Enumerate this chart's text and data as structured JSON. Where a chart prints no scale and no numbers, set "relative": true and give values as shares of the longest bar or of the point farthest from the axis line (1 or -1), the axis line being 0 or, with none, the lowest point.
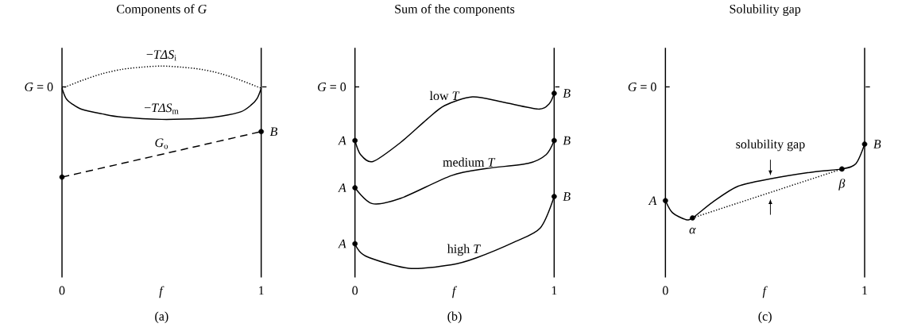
{
  "chart_data": [
    {
      "type": "line",
      "title": "Components of *G*",
      "xlabel": "*f*",
      "xlim": [
        0,
        1
      ],
      "xticks": [
        0,
        1
      ],
      "relative": true,
      "series": [
        {
          "name": "−*TΔS*$_{i}$",
          "color": "#000000",
          "line_style": "dotted",
          "x": [
            0,
            0.1,
            0.2,
            0.3,
            0.4,
            0.5,
            0.6,
            0.7,
            0.8,
            0.9,
            1
          ],
          "values": [
            0.8,
            0.87,
            0.93,
            0.97,
            0.99,
            1.0,
            0.99,
            0.97,
            0.93,
            0.87,
            0.8
          ]
        },
        {
          "name": "−*TΔS*$_{m}$",
          "color": "#000000",
          "line_style": "solid",
          "x": [
            0,
            0.02,
            0.05,
            0.1,
            0.2,
            0.3,
            0.5,
            0.7,
            0.8,
            0.9,
            0.95,
            0.98,
            1
          ],
          "values": [
            0.8,
            0.71,
            0.66,
            0.61,
            0.57,
            0.54,
            0.52,
            0.53,
            0.55,
            0.59,
            0.65,
            0.71,
            0.8
          ]
        },
        {
          "name": "*G*$_{o}$",
          "color": "#000000",
          "line_style": "dashed",
          "x": [
            0,
            1
          ],
          "values": [
            0,
            0.41
          ]
        },
        {
          "type": "scatter",
          "marker": "circle",
          "color": "#000000",
          "x": [
            0,
            1
          ],
          "values": [
            0,
            0.41
          ]
        }
      ],
      "annotations": [
        "*G* = 0",
        {
          "text": "*B*",
          "x": 1,
          "y": 0.41
        },
        "(a)"
      ]
    },
    {
      "type": "line",
      "title": "Sum of the components",
      "xlabel": "*f*",
      "xlim": [
        0,
        1
      ],
      "xticks": [
        0,
        1
      ],
      "relative": true,
      "series": [
        {
          "name": "low *T*",
          "color": "#000000",
          "line_style": "solid",
          "x": [
            0,
            0.028,
            0.09,
            0.23,
            0.36,
            0.45,
            0.59,
            0.74,
            0.92,
            0.975,
            1
          ],
          "values": [
            0.73,
            0.65,
            0.61,
            0.72,
            0.85,
            0.93,
            0.98,
            0.95,
            0.91,
            0.94,
            1.0
          ]
        },
        {
          "name": "medium *T*",
          "color": "#000000",
          "line_style": "solid",
          "x": [
            0,
            0.085,
            0.23,
            0.485,
            0.66,
            0.87,
            0.96,
            1
          ],
          "values": [
            0.46,
            0.37,
            0.4,
            0.53,
            0.57,
            0.6,
            0.65,
            0.73
          ]
        },
        {
          "name": "high *T*",
          "color": "#000000",
          "line_style": "solid",
          "x": [
            0,
            0.053,
            0.27,
            0.485,
            0.61,
            0.8,
            0.93,
            1
          ],
          "values": [
            0.14,
            0.07,
            0,
            0.02,
            0.06,
            0.15,
            0.23,
            0.41
          ]
        },
        {
          "type": "scatter",
          "marker": "circle",
          "color": "#000000",
          "x": [
            0,
            0,
            0,
            1,
            1,
            1
          ],
          "values": [
            0.73,
            0.46,
            0.14,
            1.0,
            0.73,
            0.41
          ]
        }
      ],
      "annotations": [
        "*G* = 0",
        {
          "text": "*A*",
          "x": 0,
          "y": 0.73
        },
        {
          "text": "*A*",
          "x": 0,
          "y": 0.46
        },
        {
          "text": "*A*",
          "x": 0,
          "y": 0.14
        },
        {
          "text": "*B*",
          "x": 1,
          "y": 1.0
        },
        {
          "text": "*B*",
          "x": 1,
          "y": 0.73
        },
        {
          "text": "*B*",
          "x": 1,
          "y": 0.41
        },
        "(b)"
      ]
    },
    {
      "type": "line",
      "title": "Solubility gap",
      "xlabel": "*f*",
      "xlim": [
        0,
        1
      ],
      "xticks": [
        0,
        1
      ],
      "relative": true,
      "series": [
        {
          "color": "#000000",
          "line_style": "solid",
          "x": [
            0,
            0.035,
            0.1,
            0.136,
            0.237,
            0.363,
            0.527,
            0.74,
            0.886,
            0.956,
            1
          ],
          "values": [
            0.25,
            0.09,
            0,
            0.02,
            0.23,
            0.44,
            0.54,
            0.63,
            0.67,
            0.74,
            1.0
          ]
        },
        {
          "color": "#000000",
          "line_style": "dotted",
          "x": [
            0.136,
            0.886
          ],
          "values": [
            0.02,
            0.67
          ]
        },
        {
          "type": "scatter",
          "marker": "circle",
          "color": "#000000",
          "x": [
            0,
            0.136,
            0.886,
            1
          ],
          "values": [
            0.25,
            0.02,
            0.67,
            1.0
          ]
        }
      ],
      "annotations": [
        "*G* = 0",
        {
          "text": "*A*",
          "x": 0,
          "y": 0.25
        },
        {
          "text": "*α*",
          "x": 0.136,
          "y": 0.02
        },
        {
          "text": "*β*",
          "x": 0.886,
          "y": 0.67
        },
        {
          "text": "*B*",
          "x": 1,
          "y": 1.0
        },
        {
          "text": "solubility gap",
          "x": 0.527,
          "y": 0.54
        },
        "(c)"
      ]
    }
  ]
}
